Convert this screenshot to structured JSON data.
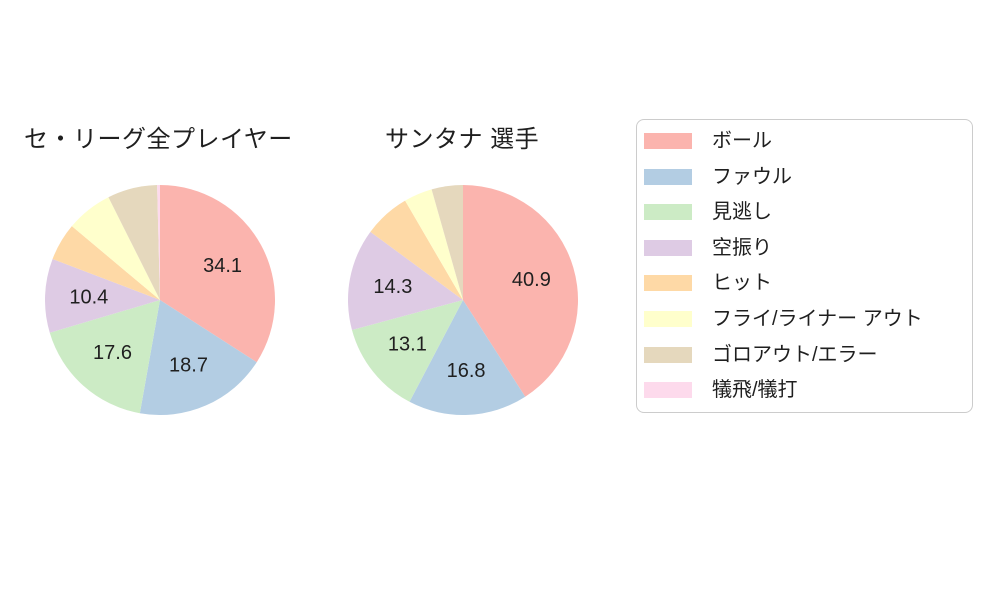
{
  "page": {
    "background_color": "#ffffff",
    "text_color": "#1f1f1f"
  },
  "chart_data": {
    "type": "pie",
    "categories": [
      "ボール",
      "ファウル",
      "見逃し",
      "空振り",
      "ヒット",
      "フライ/ライナー アウト",
      "ゴロアウト/エラー",
      "犠飛/犠打"
    ],
    "colors": [
      "#fbb4ae",
      "#b3cde3",
      "#ccebc5",
      "#decbe4",
      "#fed9a6",
      "#ffffcc",
      "#e5d8bd",
      "#fddaec"
    ],
    "series": [
      {
        "name": "セ・リーグ全プレイヤー",
        "values": [
          34.1,
          18.7,
          17.6,
          10.4,
          5.3,
          6.5,
          7.0,
          0.4
        ],
        "shown_data_labels": [
          "34.1",
          "18.7",
          "17.6",
          "10.4"
        ]
      },
      {
        "name": "サンタナ 選手",
        "values": [
          40.9,
          16.8,
          13.1,
          14.3,
          6.5,
          4.0,
          4.4,
          0
        ],
        "shown_data_labels": [
          "40.9",
          "16.8",
          "13.1",
          "14.3"
        ]
      }
    ],
    "start_angle_deg": 90,
    "direction": "clockwise",
    "label_threshold": 10,
    "label_radius_frac": 0.62,
    "label_font_px": 20,
    "legend_position": "right",
    "grid": false
  },
  "legend": {
    "items": [
      {
        "label": "ボール",
        "color": "#fbb4ae"
      },
      {
        "label": "ファウル",
        "color": "#b3cde3"
      },
      {
        "label": "見逃し",
        "color": "#ccebc5"
      },
      {
        "label": "空振り",
        "color": "#decbe4"
      },
      {
        "label": "ヒット",
        "color": "#fed9a6"
      },
      {
        "label": "フライ/ライナー アウト",
        "color": "#ffffcc"
      },
      {
        "label": "ゴロアウト/エラー",
        "color": "#e5d8bd"
      },
      {
        "label": "犠飛/犠打",
        "color": "#fddaec"
      }
    ]
  }
}
